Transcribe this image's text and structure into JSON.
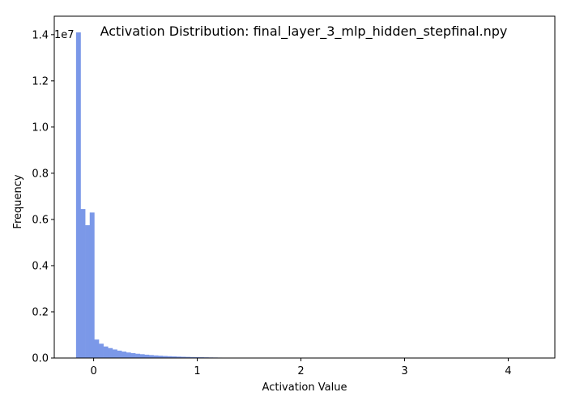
{
  "chart_data": {
    "type": "bar",
    "title": "Activation Distribution: final_layer_3_mlp_hidden_stepfinal.npy",
    "xlabel": "Activation Value",
    "ylabel": "Frequency",
    "y_offset_label": "1e7",
    "xlim": [
      -0.38,
      4.45
    ],
    "ylim": [
      0,
      14800000
    ],
    "xticks": [
      0,
      1,
      2,
      3,
      4
    ],
    "yticks": [
      0.0,
      0.2,
      0.4,
      0.6,
      0.8,
      1.0,
      1.2,
      1.4
    ],
    "ytick_labels": [
      "0.0",
      "0.2",
      "0.4",
      "0.6",
      "0.8",
      "1.0",
      "1.2",
      "1.4"
    ],
    "y_tick_scale": 10000000,
    "grid": false,
    "color": "#7b98e8",
    "bin_start": -0.17,
    "bin_width": 0.044,
    "values": [
      14100000,
      6450000,
      5750000,
      6300000,
      800000,
      620000,
      500000,
      430000,
      370000,
      320000,
      280000,
      240000,
      210000,
      185000,
      165000,
      145000,
      128000,
      113000,
      100000,
      88000,
      78000,
      69000,
      61000,
      54000,
      48000,
      42000,
      37000,
      33000,
      29000,
      25000,
      22000,
      19000,
      16000,
      13000,
      11000,
      9000,
      6000,
      4000,
      2000,
      1000
    ]
  }
}
